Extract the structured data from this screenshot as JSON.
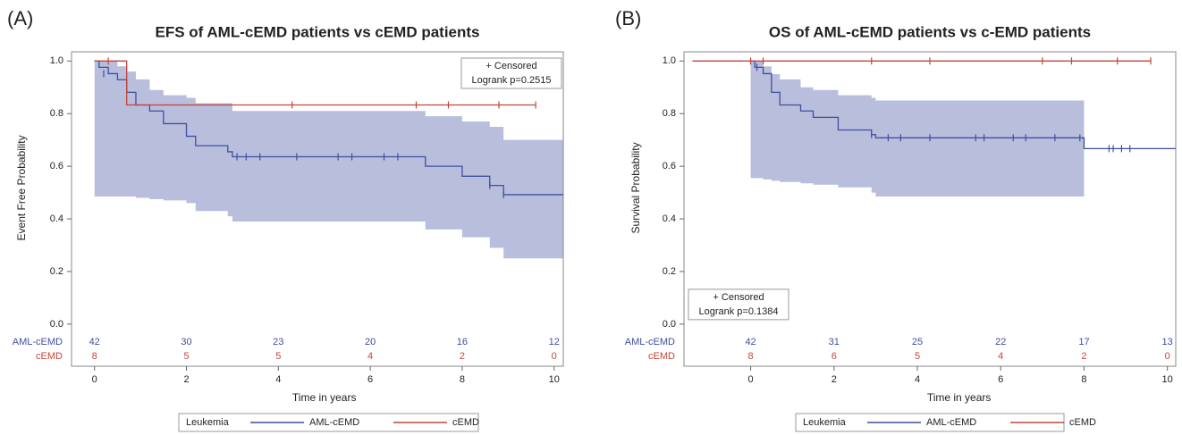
{
  "chart_data": [
    {
      "type": "km",
      "panel_label": "(A)",
      "title": "EFS of AML-cEMD patients vs cEMD patients",
      "ylabel": "Event Free Probability",
      "xlabel": "Time in years",
      "xlim": [
        -0.5,
        10.2
      ],
      "ylim": [
        -0.16,
        1.035
      ],
      "xticks": [
        0,
        2,
        4,
        6,
        8,
        10
      ],
      "yticks": [
        {
          "value": 0,
          "label": "0.0"
        },
        0.2,
        0.4,
        0.6,
        0.8,
        {
          "value": 1,
          "label": "1.0"
        }
      ],
      "censored_label": "+ Censored",
      "annotation": "Logrank p=0.2515",
      "inset_corner": "top-right",
      "legend_title": "Leukemia",
      "band_color": "#b9bedd",
      "at_risk_times": [
        0,
        2,
        4,
        6,
        8,
        10
      ],
      "series": [
        {
          "name": "AML-cEMD",
          "color": "#3f4f9e",
          "x": [
            0,
            0.1,
            0.3,
            0.5,
            0.7,
            0.9,
            1.2,
            1.5,
            2.0,
            2.2,
            2.9,
            3.0,
            7.2,
            8.0,
            8.6,
            8.9,
            10.2
          ],
          "values": [
            1.0,
            0.976,
            0.952,
            0.929,
            0.881,
            0.833,
            0.81,
            0.762,
            0.714,
            0.678,
            0.655,
            0.636,
            0.6,
            0.562,
            0.527,
            0.492,
            0.492
          ],
          "ci_lower": [
            0.485,
            0.485,
            0.485,
            0.485,
            0.485,
            0.48,
            0.475,
            0.47,
            0.46,
            0.43,
            0.41,
            0.39,
            0.36,
            0.33,
            0.29,
            0.25,
            0.25
          ],
          "ci_upper": [
            1.0,
            1.0,
            1.0,
            0.98,
            0.96,
            0.93,
            0.89,
            0.87,
            0.86,
            0.84,
            0.84,
            0.81,
            0.79,
            0.77,
            0.75,
            0.7,
            0.7
          ],
          "censored": {
            "x": [
              0.2,
              3.1,
              3.3,
              3.6,
              4.4,
              5.3,
              5.6,
              6.3,
              6.6,
              8.6,
              8.9
            ],
            "y": [
              0.952,
              0.636,
              0.636,
              0.636,
              0.636,
              0.636,
              0.636,
              0.636,
              0.636,
              0.527,
              0.492
            ]
          },
          "at_risk": [
            42,
            30,
            23,
            20,
            16,
            12
          ]
        },
        {
          "name": "cEMD",
          "color": "#c2453a",
          "x": [
            0,
            0.7,
            9.6
          ],
          "values": [
            1.0,
            0.833,
            0.833
          ],
          "censored": {
            "x": [
              0.3,
              4.3,
              7.0,
              7.7,
              8.8,
              9.6
            ],
            "y": [
              1.0,
              0.833,
              0.833,
              0.833,
              0.833,
              0.833
            ]
          },
          "at_risk": [
            8,
            5,
            5,
            4,
            2,
            0
          ]
        }
      ]
    },
    {
      "type": "km",
      "panel_label": "(B)",
      "title": "OS of AML-cEMD patients vs c-EMD patients",
      "ylabel": "Survival Probability",
      "xlabel": "Time in years",
      "xlim": [
        -1.6,
        10.2
      ],
      "ylim": [
        -0.16,
        1.035
      ],
      "xticks": [
        0,
        2,
        4,
        6,
        8,
        10
      ],
      "yticks": [
        {
          "value": 0,
          "label": "0.0"
        },
        0.2,
        0.4,
        0.6,
        0.8,
        {
          "value": 1,
          "label": "1.0"
        }
      ],
      "censored_label": "+ Censored",
      "annotation": "Logrank p=0.1384",
      "inset_corner": "bottom-left",
      "legend_title": "Leukemia",
      "band_color": "#b9bedd",
      "at_risk_times": [
        0,
        2,
        4,
        6,
        8,
        10
      ],
      "series": [
        {
          "name": "AML-cEMD",
          "color": "#3f4f9e",
          "x": [
            0,
            0.1,
            0.3,
            0.5,
            0.7,
            1.2,
            1.5,
            2.1,
            2.9,
            3.0,
            8.0,
            10.2
          ],
          "values": [
            1.0,
            0.976,
            0.952,
            0.881,
            0.833,
            0.81,
            0.786,
            0.738,
            0.72,
            0.708,
            0.667,
            0.667
          ],
          "ci_lower": [
            0.555,
            0.555,
            0.55,
            0.545,
            0.54,
            0.535,
            0.53,
            0.52,
            0.5,
            0.485,
            null,
            null
          ],
          "ci_upper": [
            1.0,
            1.0,
            0.98,
            0.95,
            0.93,
            0.9,
            0.89,
            0.87,
            0.86,
            0.85,
            null,
            null
          ],
          "censored": {
            "x": [
              0.15,
              2.9,
              3.3,
              3.6,
              4.3,
              5.4,
              5.6,
              6.3,
              6.6,
              7.3,
              7.9,
              8.6,
              8.7,
              8.9,
              9.1
            ],
            "y": [
              0.976,
              0.72,
              0.708,
              0.708,
              0.708,
              0.708,
              0.708,
              0.708,
              0.708,
              0.708,
              0.708,
              0.667,
              0.667,
              0.667,
              0.667
            ]
          },
          "at_risk": [
            42,
            31,
            25,
            22,
            17,
            13
          ]
        },
        {
          "name": "cEMD",
          "color": "#c2453a",
          "x": [
            -1.4,
            9.6
          ],
          "values": [
            1.0,
            1.0
          ],
          "censored": {
            "x": [
              0,
              0.3,
              2.9,
              4.3,
              7.0,
              7.7,
              8.8,
              9.6
            ],
            "y": [
              1.0,
              1.0,
              1.0,
              1.0,
              1.0,
              1.0,
              1.0,
              1.0
            ]
          },
          "at_risk": [
            8,
            6,
            5,
            4,
            2,
            0
          ]
        }
      ]
    }
  ]
}
